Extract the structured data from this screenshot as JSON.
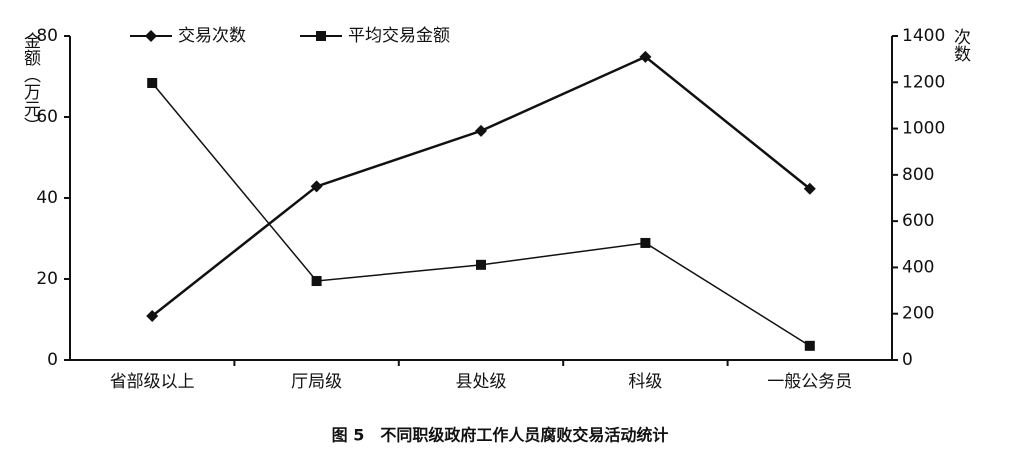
{
  "chart_data": {
    "type": "line",
    "title": "图 5　不同职级政府工作人员腐败交易活动统计",
    "y_label": "金额（万元）",
    "y2_label": "次数",
    "categories": [
      "省部级以上",
      "厅局级",
      "县处级",
      "科级",
      "一般公务员"
    ],
    "series": [
      {
        "name": "交易次数",
        "color": "#111111",
        "marker": "diamond",
        "axis": "y2",
        "values": [
          190,
          750,
          990,
          1310,
          740
        ]
      },
      {
        "name": "平均交易金额",
        "color": "#111111",
        "marker": "square",
        "values": [
          68.4,
          19.5,
          23.5,
          28.9,
          3.5
        ]
      }
    ],
    "ylim": [
      0,
      80
    ],
    "yticks": [
      0,
      20,
      40,
      60,
      80
    ],
    "y2lim": [
      0,
      1400
    ],
    "y2ticks": [
      0,
      200,
      400,
      600,
      800,
      1000,
      1200,
      1400
    ],
    "legend": "top"
  }
}
